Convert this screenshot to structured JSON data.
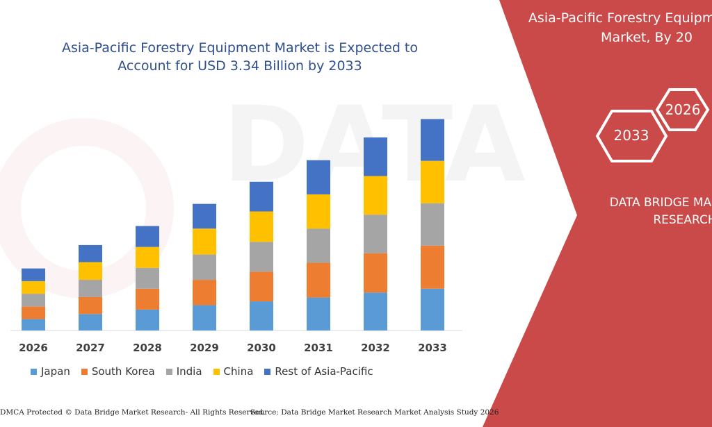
{
  "header": {
    "title_line1": "Asia-Pacific Forestry Equipment Market is Expected to",
    "title_line2": "Account for USD 3.34 Billion by 2033"
  },
  "right_panel": {
    "title_line1": "Asia-Pacific Forestry Equipme",
    "title_line2": "Market, By 20",
    "hex_start": "2026",
    "hex_end": "2033",
    "brand_line1": "DATA BRIDGE MA",
    "brand_line2": "RESEARCH",
    "color": "#c94a48"
  },
  "footer": {
    "left": "DMCA Protected © Data Bridge Market Research- All Rights Reserved.",
    "right": "Source: Data Bridge Market Research Market Analysis Study 2026"
  },
  "chart_data": {
    "type": "bar",
    "stacked": true,
    "categories": [
      "2026",
      "2027",
      "2028",
      "2029",
      "2030",
      "2031",
      "2032",
      "2033"
    ],
    "series": [
      {
        "name": "Japan",
        "color": "#5b9bd5",
        "values": [
          0.18,
          0.26,
          0.33,
          0.4,
          0.46,
          0.52,
          0.6,
          0.66
        ]
      },
      {
        "name": "South Korea",
        "color": "#ed7d31",
        "values": [
          0.2,
          0.27,
          0.33,
          0.4,
          0.47,
          0.55,
          0.62,
          0.68
        ]
      },
      {
        "name": "India",
        "color": "#a5a5a5",
        "values": [
          0.2,
          0.27,
          0.33,
          0.4,
          0.47,
          0.54,
          0.61,
          0.67
        ]
      },
      {
        "name": "China",
        "color": "#ffc000",
        "values": [
          0.2,
          0.28,
          0.33,
          0.41,
          0.48,
          0.54,
          0.61,
          0.67
        ]
      },
      {
        "name": "Rest of Asia-Pacific",
        "color": "#4472c4",
        "values": [
          0.2,
          0.27,
          0.33,
          0.39,
          0.47,
          0.54,
          0.61,
          0.66
        ]
      }
    ],
    "ylim": [
      0,
      3.4
    ],
    "grid": false,
    "legend_position": "bottom"
  }
}
